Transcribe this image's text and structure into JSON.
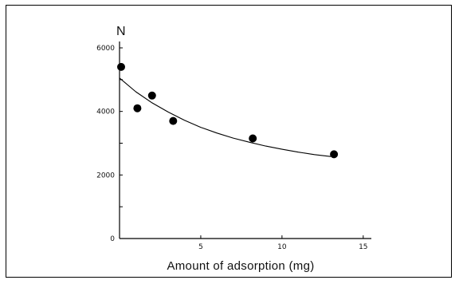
{
  "chart_data": {
    "type": "scatter",
    "title": "",
    "xlabel": "Amount of adsorption (mg)",
    "ylabel": "N",
    "xlim": [
      0,
      15.5
    ],
    "ylim": [
      0,
      6000
    ],
    "xticks": [
      0,
      5,
      10,
      15
    ],
    "xtick_labels": [
      "",
      "5",
      "10",
      "15"
    ],
    "yticks": [
      0,
      2000,
      4000,
      6000
    ],
    "ytick_labels": [
      "0",
      "2000",
      "4000",
      "6000"
    ],
    "grid": false,
    "legend": "none",
    "series": [
      {
        "kind": "points",
        "x": [
          0.1,
          1.1,
          2.0,
          3.3,
          8.2,
          13.2
        ],
        "y": [
          5400,
          4100,
          4500,
          3700,
          3150,
          2650
        ]
      },
      {
        "kind": "fit-curve",
        "x": [
          0.0,
          1.0,
          2.0,
          3.0,
          4.0,
          5.0,
          6.0,
          7.0,
          8.0,
          9.0,
          10.0,
          11.0,
          12.0,
          13.0
        ],
        "y": [
          5050,
          4620,
          4270,
          3980,
          3720,
          3500,
          3320,
          3160,
          3030,
          2910,
          2810,
          2720,
          2640,
          2580
        ]
      }
    ]
  }
}
